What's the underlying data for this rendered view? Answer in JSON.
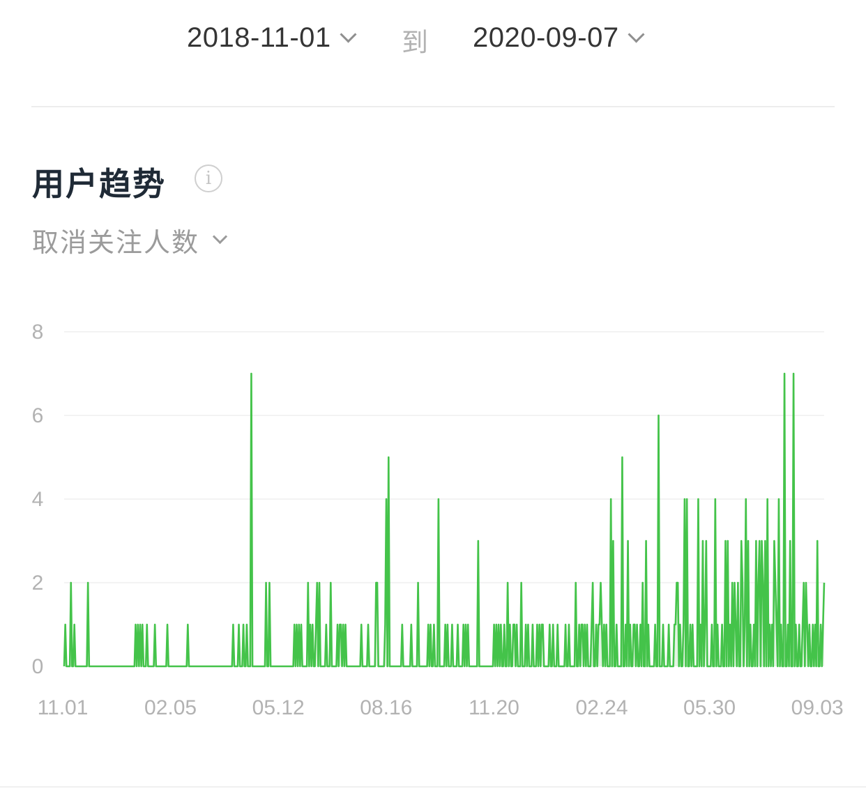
{
  "date_range": {
    "start": "2018-11-01",
    "to_label": "到",
    "end": "2020-09-07"
  },
  "section": {
    "title": "用户趋势",
    "info_icon": "i",
    "metric_select": "取消关注人数"
  },
  "colors": {
    "line": "#44c34a",
    "fill": "#e3f4e3",
    "grid": "#efefef",
    "axis_text": "#b2b2b2"
  },
  "chart_data": {
    "type": "area",
    "title": "",
    "xlabel": "",
    "ylabel": "",
    "ylim": [
      0,
      8
    ],
    "yticks": [
      0,
      2,
      4,
      6,
      8
    ],
    "x_start": "2018-11-01",
    "x_end": "2020-09-07",
    "xtick_labels": [
      "11.01",
      "02.05",
      "05.12",
      "08.16",
      "11.20",
      "02.24",
      "05.30",
      "09.03"
    ],
    "grid": true,
    "legend": "none",
    "series": [
      {
        "values": [
          0,
          1,
          0,
          0,
          0,
          0,
          2,
          0,
          0,
          1,
          0,
          0,
          0,
          0,
          0,
          0,
          0,
          0,
          0,
          0,
          0,
          2,
          0,
          0,
          0,
          0,
          0,
          0,
          0,
          0,
          0,
          0,
          0,
          0,
          0,
          0,
          0,
          0,
          0,
          0,
          0,
          0,
          0,
          0,
          0,
          0,
          0,
          0,
          0,
          0,
          0,
          0,
          0,
          0,
          0,
          0,
          0,
          0,
          0,
          0,
          0,
          0,
          0,
          1,
          0,
          1,
          0,
          1,
          0,
          1,
          0,
          0,
          0,
          1,
          0,
          0,
          0,
          0,
          0,
          0,
          1,
          0,
          0,
          0,
          0,
          0,
          0,
          0,
          0,
          0,
          0,
          1,
          0,
          0,
          0,
          0,
          0,
          0,
          0,
          0,
          0,
          0,
          0,
          0,
          0,
          0,
          0,
          0,
          0,
          1,
          0,
          0,
          0,
          0,
          0,
          0,
          0,
          0,
          0,
          0,
          0,
          0,
          0,
          0,
          0,
          0,
          0,
          0,
          0,
          0,
          0,
          0,
          0,
          0,
          0,
          0,
          0,
          0,
          0,
          0,
          0,
          0,
          0,
          0,
          0,
          0,
          0,
          0,
          0,
          1,
          0,
          0,
          0,
          0,
          1,
          0,
          0,
          0,
          1,
          0,
          0,
          1,
          0,
          0,
          0,
          7,
          0,
          0,
          0,
          0,
          0,
          0,
          0,
          0,
          0,
          0,
          0,
          0,
          2,
          0,
          0,
          2,
          0,
          0,
          0,
          0,
          0,
          0,
          0,
          0,
          0,
          0,
          0,
          0,
          0,
          0,
          0,
          0,
          0,
          0,
          0,
          0,
          0,
          1,
          0,
          1,
          0,
          1,
          0,
          1,
          0,
          0,
          0,
          0,
          0,
          2,
          0,
          1,
          0,
          1,
          0,
          0,
          1,
          2,
          0,
          2,
          0,
          0,
          0,
          0,
          0,
          1,
          0,
          0,
          0,
          2,
          0,
          0,
          0,
          0,
          0,
          1,
          0,
          1,
          1,
          0,
          1,
          0,
          1,
          0,
          0,
          0,
          0,
          0,
          0,
          0,
          0,
          0,
          0,
          0,
          0,
          0,
          1,
          0,
          0,
          0,
          0,
          0,
          1,
          0,
          0,
          0,
          0,
          0,
          0,
          2,
          2,
          0,
          0,
          0,
          0,
          0,
          0,
          1,
          4,
          0,
          5,
          0,
          0,
          0,
          0,
          0,
          0,
          0,
          0,
          0,
          0,
          0,
          1,
          0,
          0,
          0,
          0,
          0,
          0,
          0,
          1,
          0,
          0,
          0,
          0,
          0,
          2,
          0,
          0,
          0,
          0,
          0,
          0,
          0,
          0,
          1,
          0,
          1,
          0,
          0,
          1,
          0,
          0,
          0,
          4,
          0,
          0,
          0,
          0,
          0,
          1,
          0,
          1,
          0,
          0,
          0,
          1,
          0,
          0,
          0,
          0,
          1,
          0,
          0,
          0,
          0,
          1,
          0,
          1,
          0,
          1,
          0,
          0,
          0,
          0,
          0,
          0,
          0,
          0,
          3,
          0,
          0,
          0,
          0,
          0,
          0,
          0,
          0,
          0,
          0,
          0,
          0,
          0,
          1,
          0,
          1,
          0,
          1,
          0,
          1,
          0,
          0,
          1,
          0,
          0,
          2,
          0,
          1,
          0,
          0,
          1,
          1,
          0,
          1,
          0,
          0,
          0,
          2,
          0,
          0,
          0,
          1,
          0,
          1,
          0,
          0,
          0,
          1,
          0,
          0,
          0,
          1,
          0,
          1,
          0,
          1,
          1,
          0,
          0,
          0,
          0,
          0,
          1,
          0,
          0,
          1,
          0,
          0,
          0,
          1,
          0,
          0,
          0,
          0,
          0,
          0,
          1,
          0,
          0,
          1,
          0,
          0,
          0,
          0,
          0,
          2,
          0,
          0,
          1,
          0,
          1,
          1,
          0,
          1,
          0,
          1,
          0,
          0,
          0,
          1,
          2,
          0,
          0,
          1,
          0,
          1,
          1,
          2,
          1,
          0,
          1,
          0,
          1,
          0,
          0,
          0,
          4,
          0,
          3,
          0,
          0,
          1,
          0,
          0,
          0,
          0,
          5,
          0,
          0,
          1,
          0,
          3,
          0,
          1,
          0,
          0,
          1,
          1,
          0,
          1,
          0,
          0,
          1,
          0,
          2,
          0,
          0,
          3,
          0,
          1,
          0,
          0,
          0,
          0,
          0,
          1,
          0,
          0,
          6,
          0,
          0,
          0,
          1,
          0,
          0,
          0,
          0,
          1,
          0,
          0,
          0,
          0,
          1,
          1,
          2,
          2,
          0,
          1,
          0,
          0,
          1,
          4,
          0,
          4,
          0,
          0,
          1,
          0,
          1,
          0,
          0,
          0,
          0,
          4,
          0,
          1,
          0,
          3,
          0,
          1,
          3,
          0,
          0,
          0,
          0,
          1,
          0,
          0,
          4,
          0,
          1,
          0,
          0,
          0,
          1,
          0,
          0,
          3,
          0,
          3,
          0,
          1,
          0,
          2,
          0,
          2,
          1,
          0,
          2,
          0,
          0,
          3,
          2,
          0,
          1,
          4,
          0,
          3,
          0,
          1,
          0,
          0,
          1,
          0,
          3,
          0,
          2,
          3,
          0,
          3,
          2,
          0,
          3,
          0,
          4,
          0,
          1,
          0,
          1,
          0,
          3,
          2,
          1,
          0,
          4,
          0,
          1,
          0,
          0,
          7,
          0,
          0,
          1,
          0,
          3,
          0,
          0,
          7,
          0,
          1,
          0,
          0,
          1,
          0,
          0,
          1,
          2,
          0,
          2,
          1,
          0,
          1,
          0,
          0,
          1,
          0,
          1,
          0,
          3,
          0,
          0,
          1,
          0,
          1,
          2
        ]
      }
    ]
  }
}
